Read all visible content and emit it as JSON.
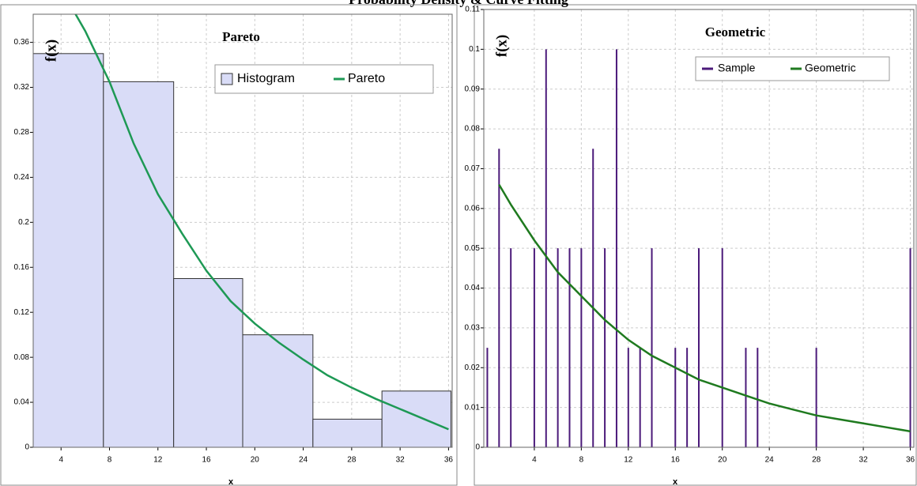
{
  "title": "Probability Density & Curve Fitting",
  "chart_data": [
    {
      "type": "histogram",
      "title": "Pareto",
      "ylabel": "f(x)",
      "xlabel": "x",
      "xlim": [
        1.7,
        36.3
      ],
      "xticks": [
        4,
        8,
        12,
        16,
        20,
        24,
        28,
        32,
        36
      ],
      "ylim": [
        0,
        0.385
      ],
      "yticks": [
        0,
        0.04,
        0.08,
        0.12,
        0.16,
        0.2,
        0.24,
        0.28,
        0.32,
        0.36
      ],
      "grid": true,
      "legend": "top-right",
      "bars": {
        "name": "Histogram",
        "color": "#d9dcf7",
        "bins": [
          1.7,
          7.5,
          13.3,
          19,
          24.8,
          30.5,
          36.2
        ],
        "values": [
          0.35,
          0.325,
          0.15,
          0.1,
          0.025,
          0.05
        ]
      },
      "curve": {
        "name": "Pareto",
        "color": "#1e9955",
        "x": [
          5.2,
          6,
          8,
          10,
          12,
          14,
          16,
          18,
          20,
          22,
          24,
          26,
          28,
          30,
          32,
          34,
          36
        ],
        "values": [
          0.385,
          0.37,
          0.325,
          0.27,
          0.225,
          0.19,
          0.157,
          0.13,
          0.11,
          0.093,
          0.078,
          0.064,
          0.053,
          0.043,
          0.034,
          0.025,
          0.016
        ]
      }
    },
    {
      "type": "stem",
      "title": "Geometric",
      "ylabel": "f(x)",
      "xlabel": "x",
      "xlim": [
        -0.3,
        36.3
      ],
      "xticks": [
        4,
        8,
        12,
        16,
        20,
        24,
        28,
        32,
        36
      ],
      "ylim": [
        0,
        0.11
      ],
      "yticks": [
        0,
        0.01,
        0.02,
        0.03,
        0.04,
        0.05,
        0.06,
        0.07,
        0.08,
        0.09,
        0.1,
        0.11
      ],
      "grid": true,
      "legend": "top-right",
      "bars": {
        "name": "Sample",
        "color": "#4b1a7a",
        "x": [
          0,
          1,
          2,
          4,
          5,
          6,
          7,
          8,
          9,
          10,
          11,
          12,
          13,
          14,
          16,
          17,
          18,
          20,
          22,
          23,
          28,
          36
        ],
        "values": [
          0.025,
          0.075,
          0.05,
          0.05,
          0.1,
          0.05,
          0.05,
          0.05,
          0.075,
          0.05,
          0.1,
          0.025,
          0.025,
          0.05,
          0.025,
          0.025,
          0.05,
          0.05,
          0.025,
          0.025,
          0.025,
          0.05
        ]
      },
      "curve": {
        "name": "Geometric",
        "color": "#1f7a1f",
        "x": [
          1,
          2,
          4,
          6,
          8,
          10,
          12,
          14,
          16,
          18,
          20,
          22,
          24,
          26,
          28,
          30,
          32,
          34,
          36
        ],
        "values": [
          0.066,
          0.061,
          0.052,
          0.044,
          0.038,
          0.032,
          0.027,
          0.023,
          0.02,
          0.017,
          0.015,
          0.013,
          0.011,
          0.0095,
          0.008,
          0.007,
          0.006,
          0.005,
          0.004
        ]
      }
    }
  ]
}
